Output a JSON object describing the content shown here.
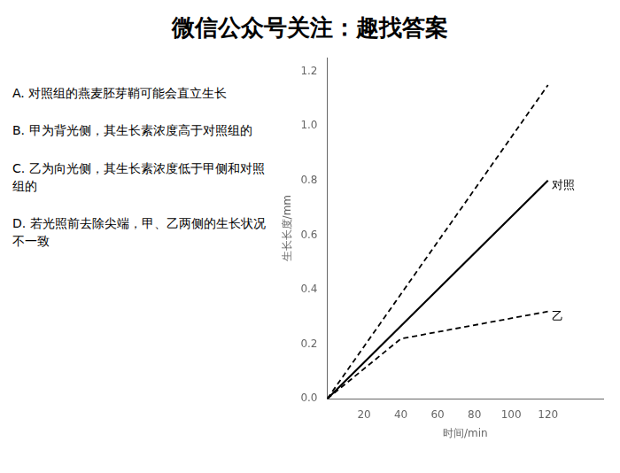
{
  "chart_data": {
    "type": "line",
    "title": "微信公众号关注：趣找答案",
    "x_label": "时间/min",
    "y_label": "生长长度/mm",
    "series": [
      {
        "x": [
          0,
          120
        ],
        "values": [
          0,
          1.15
        ],
        "color": "#000000",
        "line_style": "dashed"
      },
      {
        "x": [
          0,
          120
        ],
        "values": [
          0,
          0.8
        ],
        "color": "#000000",
        "line_style": "solid"
      },
      {
        "x": [
          0,
          40,
          120
        ],
        "values": [
          0,
          0.22,
          0.32
        ],
        "color": "#000000",
        "line_style": "dashed"
      }
    ],
    "annotations": [
      {
        "text": "对照",
        "x": 122,
        "y": 0.78
      },
      {
        "text": "乙",
        "x": 122,
        "y": 0.3
      }
    ],
    "options": [
      "A. 对照组的燕麦胚芽鞘可能会直立生长",
      "B. 甲为背光侧，其生长素浓度高于对照组的",
      "C. 乙为向光侧，其生长素浓度低于甲侧和对照组的",
      "D. 若光照前去除尖端，甲、乙两侧的生长状况不一致"
    ],
    "xlim": [
      0,
      150
    ],
    "xticks": [
      20,
      40,
      60,
      80,
      100,
      120
    ],
    "ylim": [
      0,
      1.25
    ],
    "yticks": [
      {
        "value": 0,
        "label": "0.0"
      },
      0.2,
      0.4,
      0.6,
      0.8,
      {
        "value": 1,
        "label": "1.0"
      },
      1.2
    ],
    "grid": false
  }
}
